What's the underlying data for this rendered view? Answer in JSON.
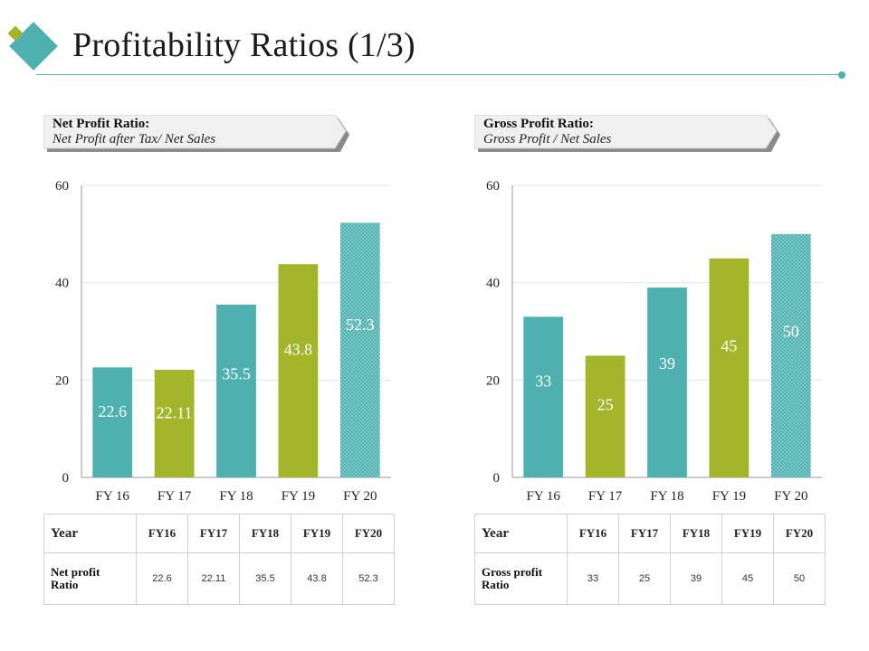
{
  "title": "Profitability Ratios (1/3)",
  "colors": {
    "teal": "#4fb0b0",
    "green": "#a3b52b",
    "rule": "#5bb6b6"
  },
  "panels": [
    {
      "banner_title": "Net Profit Ratio:",
      "banner_subtitle": "Net Profit after Tax/ Net Sales",
      "table": {
        "header": "Year",
        "columns": [
          "FY16",
          "FY17",
          "FY18",
          "FY19",
          "FY20"
        ],
        "row_label_line1": "Net profit",
        "row_label_line2": "Ratio",
        "values": [
          "22.6",
          "22.11",
          "35.5",
          "43.8",
          "52.3"
        ]
      }
    },
    {
      "banner_title": "Gross Profit Ratio:",
      "banner_subtitle": "Gross Profit / Net Sales",
      "table": {
        "header": "Year",
        "columns": [
          "FY16",
          "FY17",
          "FY18",
          "FY19",
          "FY20"
        ],
        "row_label_line1": "Gross profit",
        "row_label_line2": "Ratio",
        "values": [
          "33",
          "25",
          "39",
          "45",
          "50"
        ]
      }
    }
  ],
  "chart_data": [
    {
      "type": "bar",
      "title": "Net Profit Ratio",
      "categories": [
        "FY 16",
        "FY 17",
        "FY 18",
        "FY 19",
        "FY 20"
      ],
      "values": [
        22.6,
        22.11,
        35.5,
        43.8,
        52.3
      ],
      "labels": [
        "22.6",
        "22.11",
        "35.5",
        "43.8",
        "52.3"
      ],
      "bar_colors": [
        "teal",
        "green",
        "teal",
        "green",
        "teal-dotted"
      ],
      "ylim": [
        0,
        60
      ],
      "yticks": [
        0,
        20,
        40,
        60
      ],
      "xlabel": "",
      "ylabel": "",
      "grid": true
    },
    {
      "type": "bar",
      "title": "Gross Profit Ratio",
      "categories": [
        "FY 16",
        "FY 17",
        "FY 18",
        "FY 19",
        "FY 20"
      ],
      "values": [
        33,
        25,
        39,
        45,
        50
      ],
      "labels": [
        "33",
        "25",
        "39",
        "45",
        "50"
      ],
      "bar_colors": [
        "teal",
        "green",
        "teal",
        "green",
        "teal-dotted"
      ],
      "ylim": [
        0,
        60
      ],
      "yticks": [
        0,
        20,
        40,
        60
      ],
      "xlabel": "",
      "ylabel": "",
      "grid": true
    }
  ]
}
